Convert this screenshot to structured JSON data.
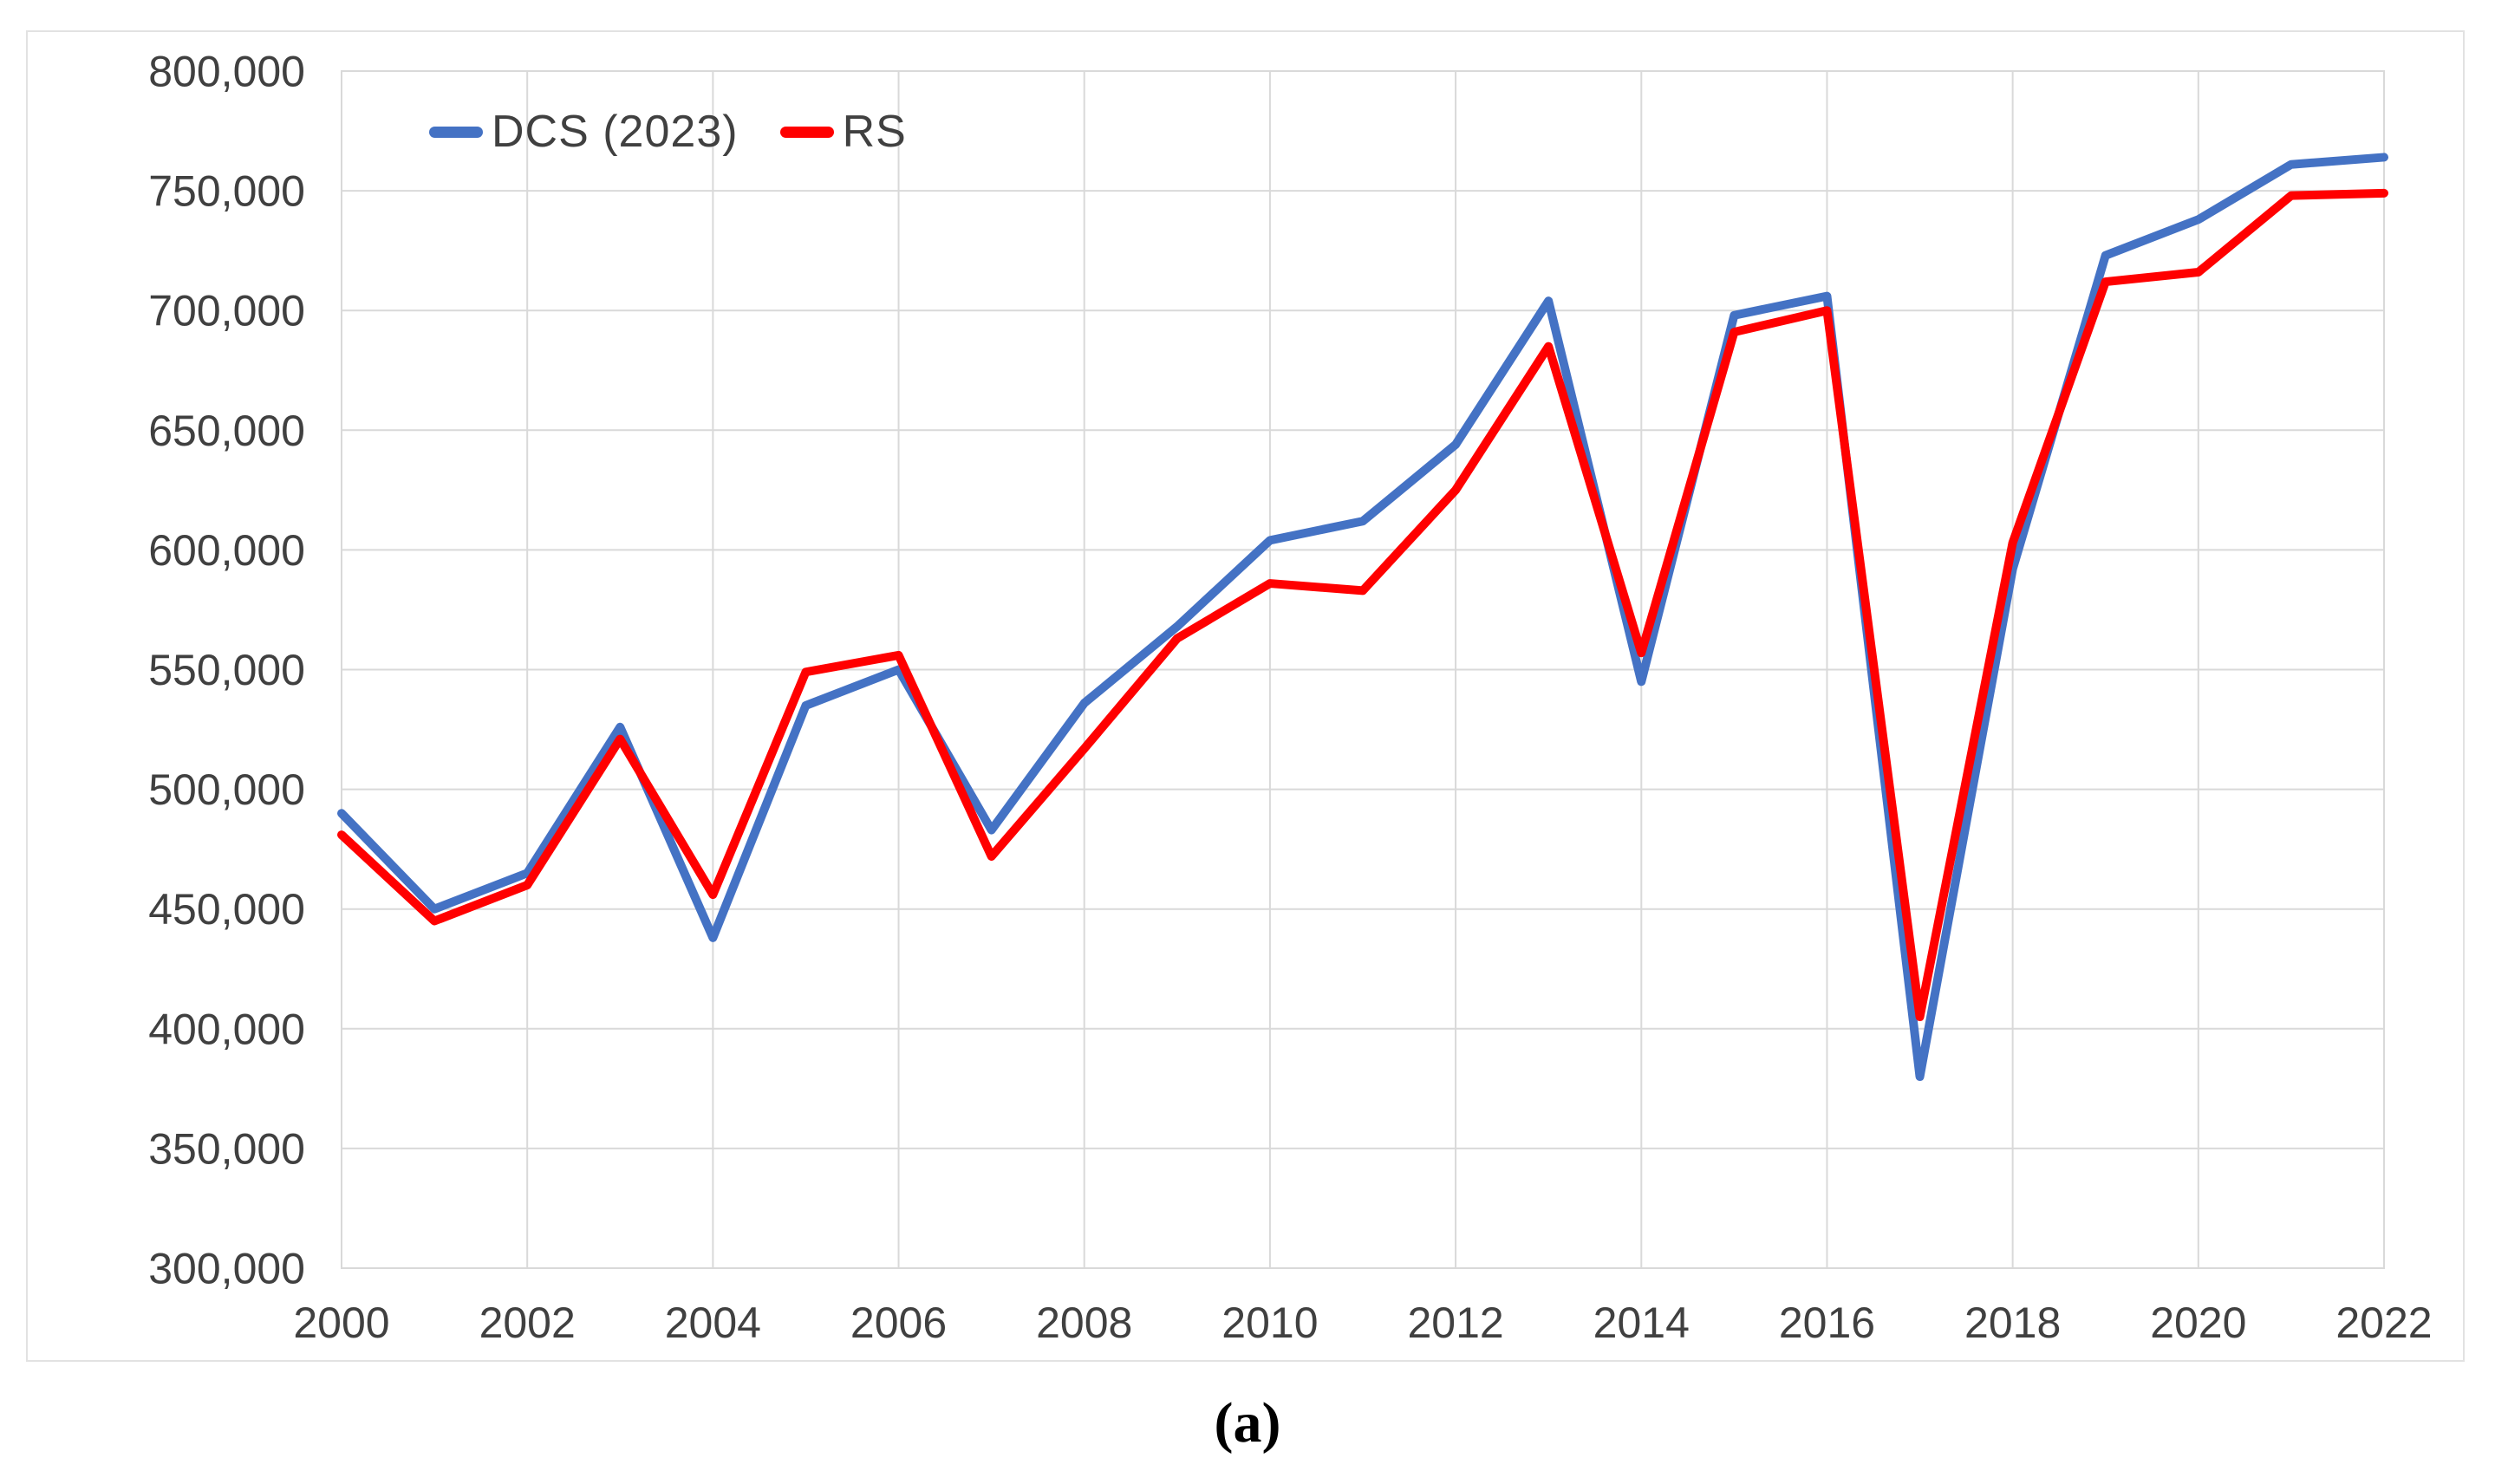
{
  "figure": {
    "caption": "(a)"
  },
  "legend": [
    {
      "label": "DCS (2023)",
      "color": "#4472C4"
    },
    {
      "label": "RS",
      "color": "#FF0000"
    }
  ],
  "axes": {
    "y_ticks": [
      "800,000",
      "750,000",
      "700,000",
      "650,000",
      "600,000",
      "550,000",
      "500,000",
      "450,000",
      "400,000",
      "350,000",
      "300,000"
    ],
    "x_ticks": [
      "2000",
      "2002",
      "2004",
      "2006",
      "2008",
      "2010",
      "2012",
      "2014",
      "2016",
      "2018",
      "2020",
      "2022"
    ]
  },
  "colors": {
    "dcs_line": "#4472C4",
    "rs_line": "#FF0000",
    "gridline": "#D9D9D9",
    "axis_text": "#404040",
    "background": "#FFFFFF",
    "outer_border": "#E2E2E2"
  },
  "chart_data": {
    "type": "line",
    "title": "",
    "xlabel": "",
    "ylabel": "",
    "x": [
      2000,
      2001,
      2002,
      2003,
      2004,
      2005,
      2006,
      2007,
      2008,
      2009,
      2010,
      2011,
      2012,
      2013,
      2014,
      2015,
      2016,
      2017,
      2018,
      2019,
      2020,
      2021,
      2022
    ],
    "series": [
      {
        "name": "DCS (2023)",
        "color": "#4472C4",
        "values": [
          490000,
          450000,
          465000,
          526000,
          438000,
          535000,
          550000,
          483000,
          536000,
          568000,
          604000,
          612000,
          644000,
          704000,
          545000,
          698000,
          706000,
          380000,
          592000,
          723000,
          738000,
          761000,
          764000
        ]
      },
      {
        "name": "RS",
        "color": "#FF0000",
        "values": [
          481000,
          445000,
          460000,
          521000,
          456000,
          549000,
          556000,
          472000,
          517000,
          563000,
          586000,
          583000,
          625000,
          685000,
          557000,
          691000,
          700000,
          405000,
          603000,
          712000,
          716000,
          748000,
          749000
        ]
      }
    ],
    "xlim": [
      2000,
      2022
    ],
    "ylim": [
      300000,
      800000
    ],
    "ytick_step": 50000,
    "xtick_step": 2,
    "grid": true,
    "legend_position": "top-left-inside"
  }
}
